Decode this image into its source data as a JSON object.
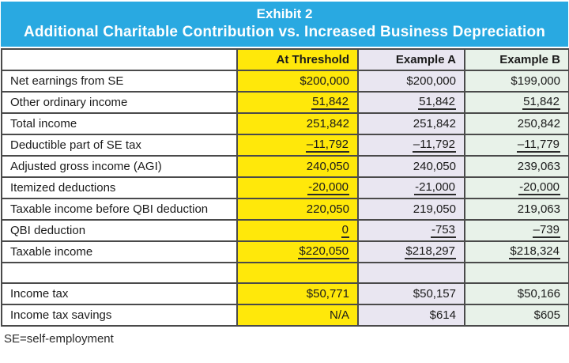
{
  "title": {
    "line1": "Exhibit 2",
    "line2": "Additional Charitable Contribution vs. Increased Business Depreciation"
  },
  "columns": [
    "At Threshold",
    "Example A",
    "Example B"
  ],
  "rows": [
    {
      "label": "Net earnings from SE",
      "values": [
        "$200,000",
        "$200,000",
        "$199,000"
      ],
      "underline": false,
      "spacer": false
    },
    {
      "label": "Other ordinary income",
      "values": [
        "51,842",
        "51,842",
        "51,842"
      ],
      "underline": true,
      "spacer": false
    },
    {
      "label": "Total income",
      "values": [
        "251,842",
        "251,842",
        "250,842"
      ],
      "underline": false,
      "spacer": false
    },
    {
      "label": "Deductible part of SE tax",
      "values": [
        "–11,792",
        "–11,792",
        "–11,779"
      ],
      "underline": true,
      "spacer": false
    },
    {
      "label": "Adjusted gross income (AGI)",
      "values": [
        "240,050",
        "240,050",
        "239,063"
      ],
      "underline": false,
      "spacer": false
    },
    {
      "label": "Itemized deductions",
      "values": [
        "-20,000",
        "-21,000",
        "-20,000"
      ],
      "underline": true,
      "spacer": false
    },
    {
      "label": "Taxable income before QBI deduction",
      "values": [
        "220,050",
        "219,050",
        "219,063"
      ],
      "underline": false,
      "spacer": false
    },
    {
      "label": "QBI deduction",
      "values": [
        "0",
        "-753",
        "–739"
      ],
      "underline": true,
      "spacer": false
    },
    {
      "label": "Taxable income",
      "values": [
        "$220,050",
        "$218,297",
        "$218,324"
      ],
      "underline": true,
      "spacer": false
    },
    {
      "label": "",
      "values": [
        "",
        "",
        ""
      ],
      "underline": false,
      "spacer": true
    },
    {
      "label": "Income tax",
      "values": [
        "$50,771",
        "$50,157",
        "$50,166"
      ],
      "underline": false,
      "spacer": false
    },
    {
      "label": "Income tax savings",
      "values": [
        "N/A",
        "$614",
        "$605"
      ],
      "underline": false,
      "spacer": false
    }
  ],
  "footnote": "SE=self-employment",
  "colors": {
    "header_bg": "#29a9e1",
    "header_text": "#ffffff",
    "threshold_bg": "#ffe80a",
    "example_a_bg": "#e9e6f1",
    "example_b_bg": "#e8f2e9",
    "border": "#4a4a4a"
  }
}
